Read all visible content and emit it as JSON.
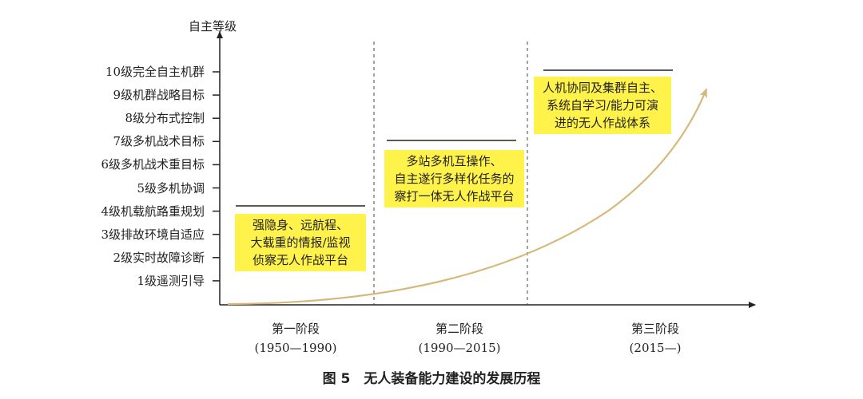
{
  "y_axis_label": "自主等级",
  "levels": [
    "10级完全自主机群",
    "9级机群战略目标",
    "8级分布式控制",
    "7级多机战术目标",
    "6级多机战术重目标",
    "5级多机协调",
    "4级机载航路重规划",
    "3级排故环境自适应",
    "2级实时故障诊断",
    "1级遥测引导"
  ],
  "stages": [
    {
      "name": "第一阶段",
      "period": "(1950—1990)",
      "description": [
        "强隐身、远航程、",
        "大载重的情报/监视",
        "侦察无人作战平台"
      ]
    },
    {
      "name": "第二阶段",
      "period": "(1990—2015)",
      "description": [
        "多站多机互操作、",
        "自主遂行多样化任务的",
        "察打一体无人作战平台"
      ]
    },
    {
      "name": "第三阶段",
      "period": "(2015—)",
      "description": [
        "人机协同及集群自主、",
        "系统自学习/能力可演",
        "进的无人作战体系"
      ]
    }
  ],
  "caption": "图 5　无人装备能力建设的发展历程",
  "colors": {
    "highlight": "#fff24a",
    "curve": "#d6b97a",
    "axis": "#222222"
  }
}
